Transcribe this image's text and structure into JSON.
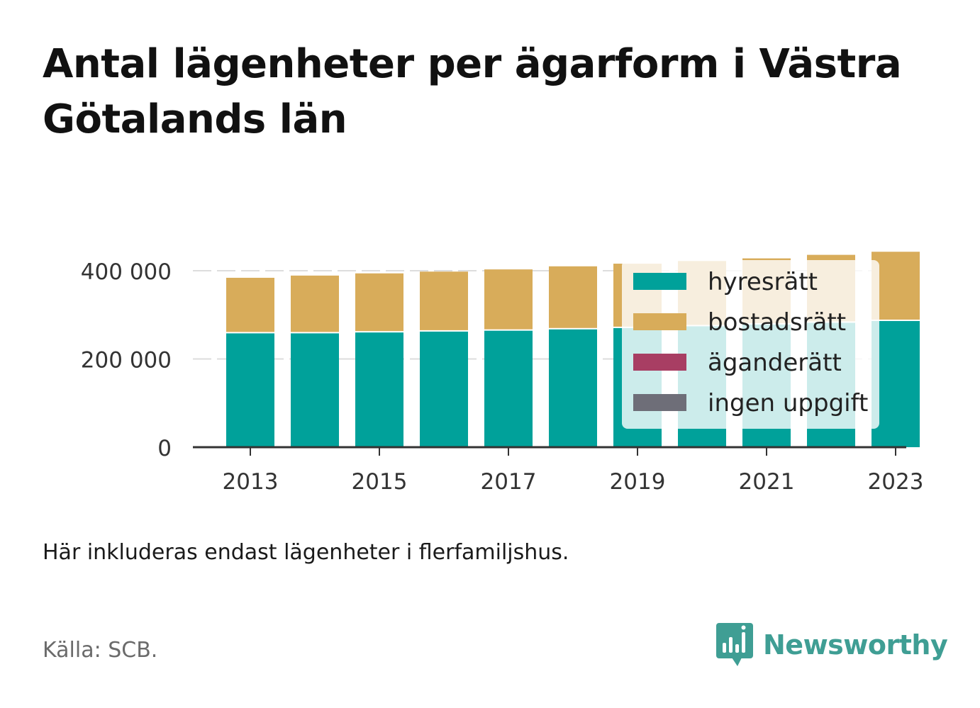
{
  "title": "Antal lägenheter per ägarform i Västra Götalands län",
  "note": "Här inkluderas endast lägenheter i flerfamiljshus.",
  "source": "Källa: SCB.",
  "brand": {
    "name": "Newsworthy",
    "icon": "newsworthy-logo-icon"
  },
  "colors": {
    "hyresratt": "#00a19a",
    "bostadsratt": "#d8ac5a",
    "aganderatt": "#a83e63",
    "ingen_uppgift": "#6e6e78",
    "brand": "#3f9e94"
  },
  "chart_data": {
    "type": "bar",
    "stacked": true,
    "categories": [
      "2013",
      "2014",
      "2015",
      "2016",
      "2017",
      "2018",
      "2019",
      "2020",
      "2021",
      "2022",
      "2023"
    ],
    "x_tick_labels": [
      "2013",
      "2015",
      "2017",
      "2019",
      "2021",
      "2023"
    ],
    "y_ticks": [
      0,
      200000,
      400000
    ],
    "y_tick_labels": [
      "0",
      "200 000",
      "400 000"
    ],
    "ylim": [
      0,
      400000
    ],
    "grid": true,
    "legend_position": "right",
    "series": [
      {
        "name": "hyresrätt",
        "color": "#00a19a",
        "values": [
          258000,
          258000,
          260000,
          262000,
          264000,
          267000,
          270000,
          274000,
          278000,
          282000,
          286000
        ]
      },
      {
        "name": "bostadsrätt",
        "color": "#d8ac5a",
        "values": [
          126000,
          131000,
          134000,
          136000,
          139000,
          143000,
          146000,
          148000,
          150000,
          154000,
          157000
        ]
      },
      {
        "name": "äganderätt",
        "color": "#a83e63",
        "values": [
          0,
          0,
          0,
          0,
          0,
          0,
          0,
          0,
          0,
          0,
          0
        ]
      },
      {
        "name": "ingen uppgift",
        "color": "#6e6e78",
        "values": [
          0,
          0,
          0,
          0,
          0,
          0,
          0,
          0,
          0,
          0,
          0
        ]
      }
    ]
  }
}
